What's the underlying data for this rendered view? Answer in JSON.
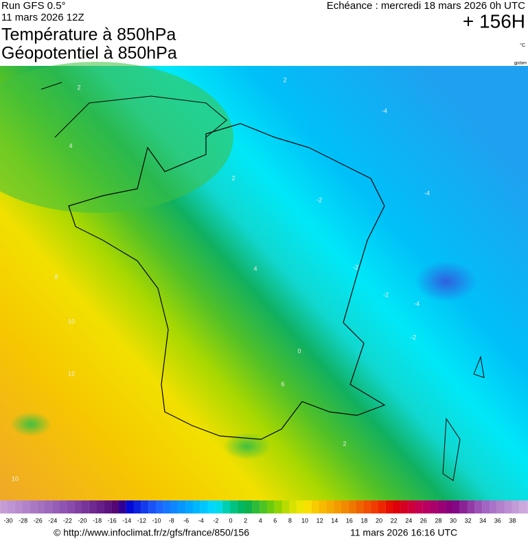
{
  "header": {
    "run": "Run GFS 0.5°",
    "run_date": "11 mars 2026 12Z",
    "forecast": "Echéance : mercredi 18 mars 2026 0h UTC",
    "lead": "+ 156H",
    "title1": "Température à 850hPa",
    "title2": "Géopotentiel à 850hPa",
    "unit": "°C",
    "source_tag": "gpdam"
  },
  "map": {
    "contour_labels": [
      "2",
      "4",
      "2",
      "2",
      "-4",
      "-2",
      "-4",
      "4",
      "-2",
      "-4",
      "-2",
      "8",
      "10",
      "12",
      "10",
      "0",
      "6",
      "2",
      "-2"
    ]
  },
  "colorbar": {
    "labels": [
      -30,
      -28,
      -26,
      -24,
      -22,
      -20,
      -18,
      -16,
      -14,
      -12,
      -10,
      -8,
      -6,
      -4,
      -2,
      0,
      2,
      4,
      6,
      8,
      10,
      12,
      14,
      16,
      18,
      20,
      22,
      24,
      26,
      28,
      30,
      32,
      34,
      36,
      38
    ]
  },
  "footer": {
    "url": "© http://www.infoclimat.fr/z/gfs/france/850/156",
    "timestamp": "11 mars 2026 16:16 UTC"
  }
}
